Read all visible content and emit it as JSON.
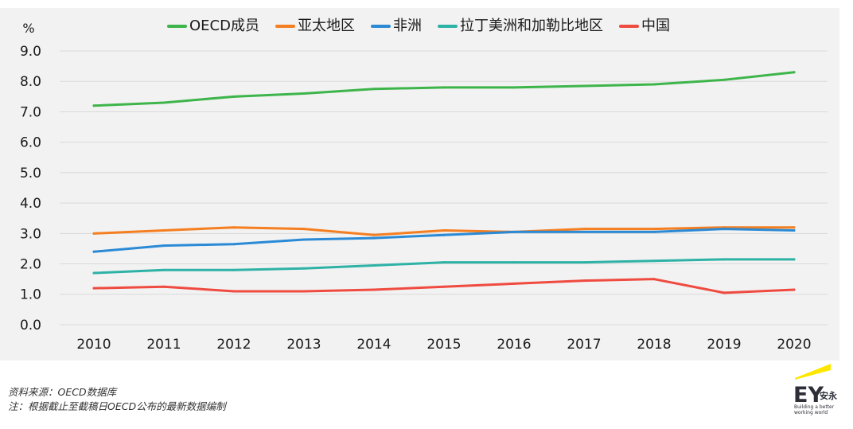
{
  "chart_data": {
    "type": "line",
    "categories": [
      "2010",
      "2011",
      "2012",
      "2013",
      "2014",
      "2015",
      "2016",
      "2017",
      "2018",
      "2019",
      "2020"
    ],
    "ylabel": "%",
    "ylim": [
      0,
      9
    ],
    "yticks": [
      "0.0",
      "1.0",
      "2.0",
      "3.0",
      "4.0",
      "5.0",
      "6.0",
      "7.0",
      "8.0",
      "9.0"
    ],
    "grid": "horizontal",
    "legend": "top",
    "series": [
      {
        "name": "OECD成员",
        "color": "#3db54a",
        "values": [
          7.2,
          7.3,
          7.5,
          7.6,
          7.75,
          7.8,
          7.8,
          7.85,
          7.9,
          8.05,
          8.3
        ]
      },
      {
        "name": "亚太地区",
        "color": "#f57f20",
        "values": [
          3.0,
          3.1,
          3.2,
          3.15,
          2.95,
          3.1,
          3.05,
          3.15,
          3.15,
          3.2,
          3.2
        ]
      },
      {
        "name": "非洲",
        "color": "#2a8ad6",
        "values": [
          2.4,
          2.6,
          2.65,
          2.8,
          2.85,
          2.95,
          3.05,
          3.05,
          3.05,
          3.15,
          3.1
        ]
      },
      {
        "name": "拉丁美洲和加勒比地区",
        "color": "#2eb2a6",
        "values": [
          1.7,
          1.8,
          1.8,
          1.85,
          1.95,
          2.05,
          2.05,
          2.05,
          2.1,
          2.15,
          2.15
        ]
      },
      {
        "name": "中国",
        "color": "#ef4b40",
        "values": [
          1.2,
          1.25,
          1.1,
          1.1,
          1.15,
          1.25,
          1.35,
          1.45,
          1.5,
          1.05,
          1.15
        ]
      }
    ]
  },
  "footnotes": {
    "source": "资料来源：OECD数据库",
    "note": "注：根据截止至截稿日OECD公布的最新数据编制"
  },
  "logo": {
    "mark": "EY",
    "name_cn": "安永",
    "tagline_1": "Building a better",
    "tagline_2": "working world",
    "beam_color": "#ffe600",
    "ink_color": "#2e2e38"
  }
}
